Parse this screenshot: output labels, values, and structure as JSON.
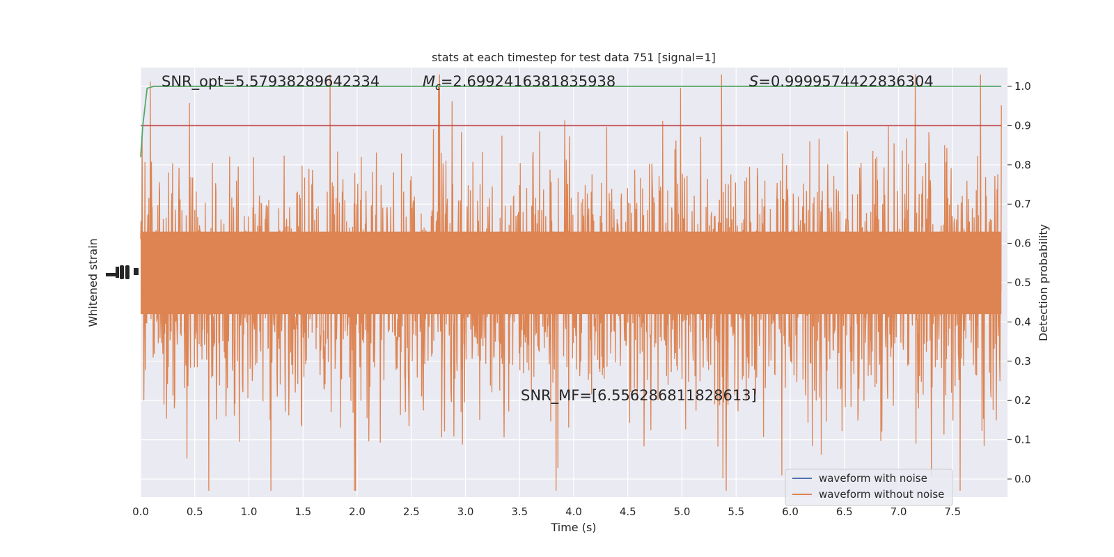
{
  "chart_data": {
    "type": "line",
    "title": "stats at each timestep for test data 751 [signal=1]",
    "xlabel": "Time (s)",
    "ylabel_left": "Whitened strain",
    "ylabel_right": "Detection probability",
    "xlim": [
      0,
      8
    ],
    "ylim_right": [
      -0.05,
      1.05
    ],
    "x_ticks": [
      "0.0",
      "0.5",
      "1.0",
      "1.5",
      "2.0",
      "2.5",
      "3.0",
      "3.5",
      "4.0",
      "4.5",
      "5.0",
      "5.5",
      "6.0",
      "6.5",
      "7.0",
      "7.5"
    ],
    "y_ticks_right": [
      "0.0",
      "0.1",
      "0.2",
      "0.3",
      "0.4",
      "0.5",
      "0.6",
      "0.7",
      "0.8",
      "0.9",
      "1.0"
    ],
    "annotations": {
      "snr_opt": "SNR_opt=5.57938289642334",
      "mc_symbol": "M",
      "mc_sub": "c",
      "mc_value": "=2.6992416381835938",
      "s_symbol": "S",
      "s_value": "=0.9999574422836304",
      "snr_mf": "SNR_MF=[6.556286811828613]"
    },
    "threshold": 0.9,
    "series": [
      {
        "name": "waveform with noise",
        "color": "#4c72b0"
      },
      {
        "name": "waveform without noise",
        "color": "#dd8452"
      },
      {
        "color": "#55a868",
        "x": [
          0,
          0.02,
          0.06,
          0.12,
          0.2,
          1.0,
          2.0,
          3.0,
          4.0,
          5.0,
          6.0,
          7.0,
          7.95
        ],
        "values": [
          0.82,
          0.9,
          0.995,
          1.0,
          1.0,
          1.0,
          1.0,
          1.0,
          1.0,
          1.0,
          1.0,
          1.0,
          1.0
        ]
      },
      {
        "color": "#c44e52",
        "x": [
          0,
          7.95
        ],
        "values": [
          0.9,
          0.9
        ]
      }
    ],
    "legend_position": "lower-right",
    "grid": true
  }
}
